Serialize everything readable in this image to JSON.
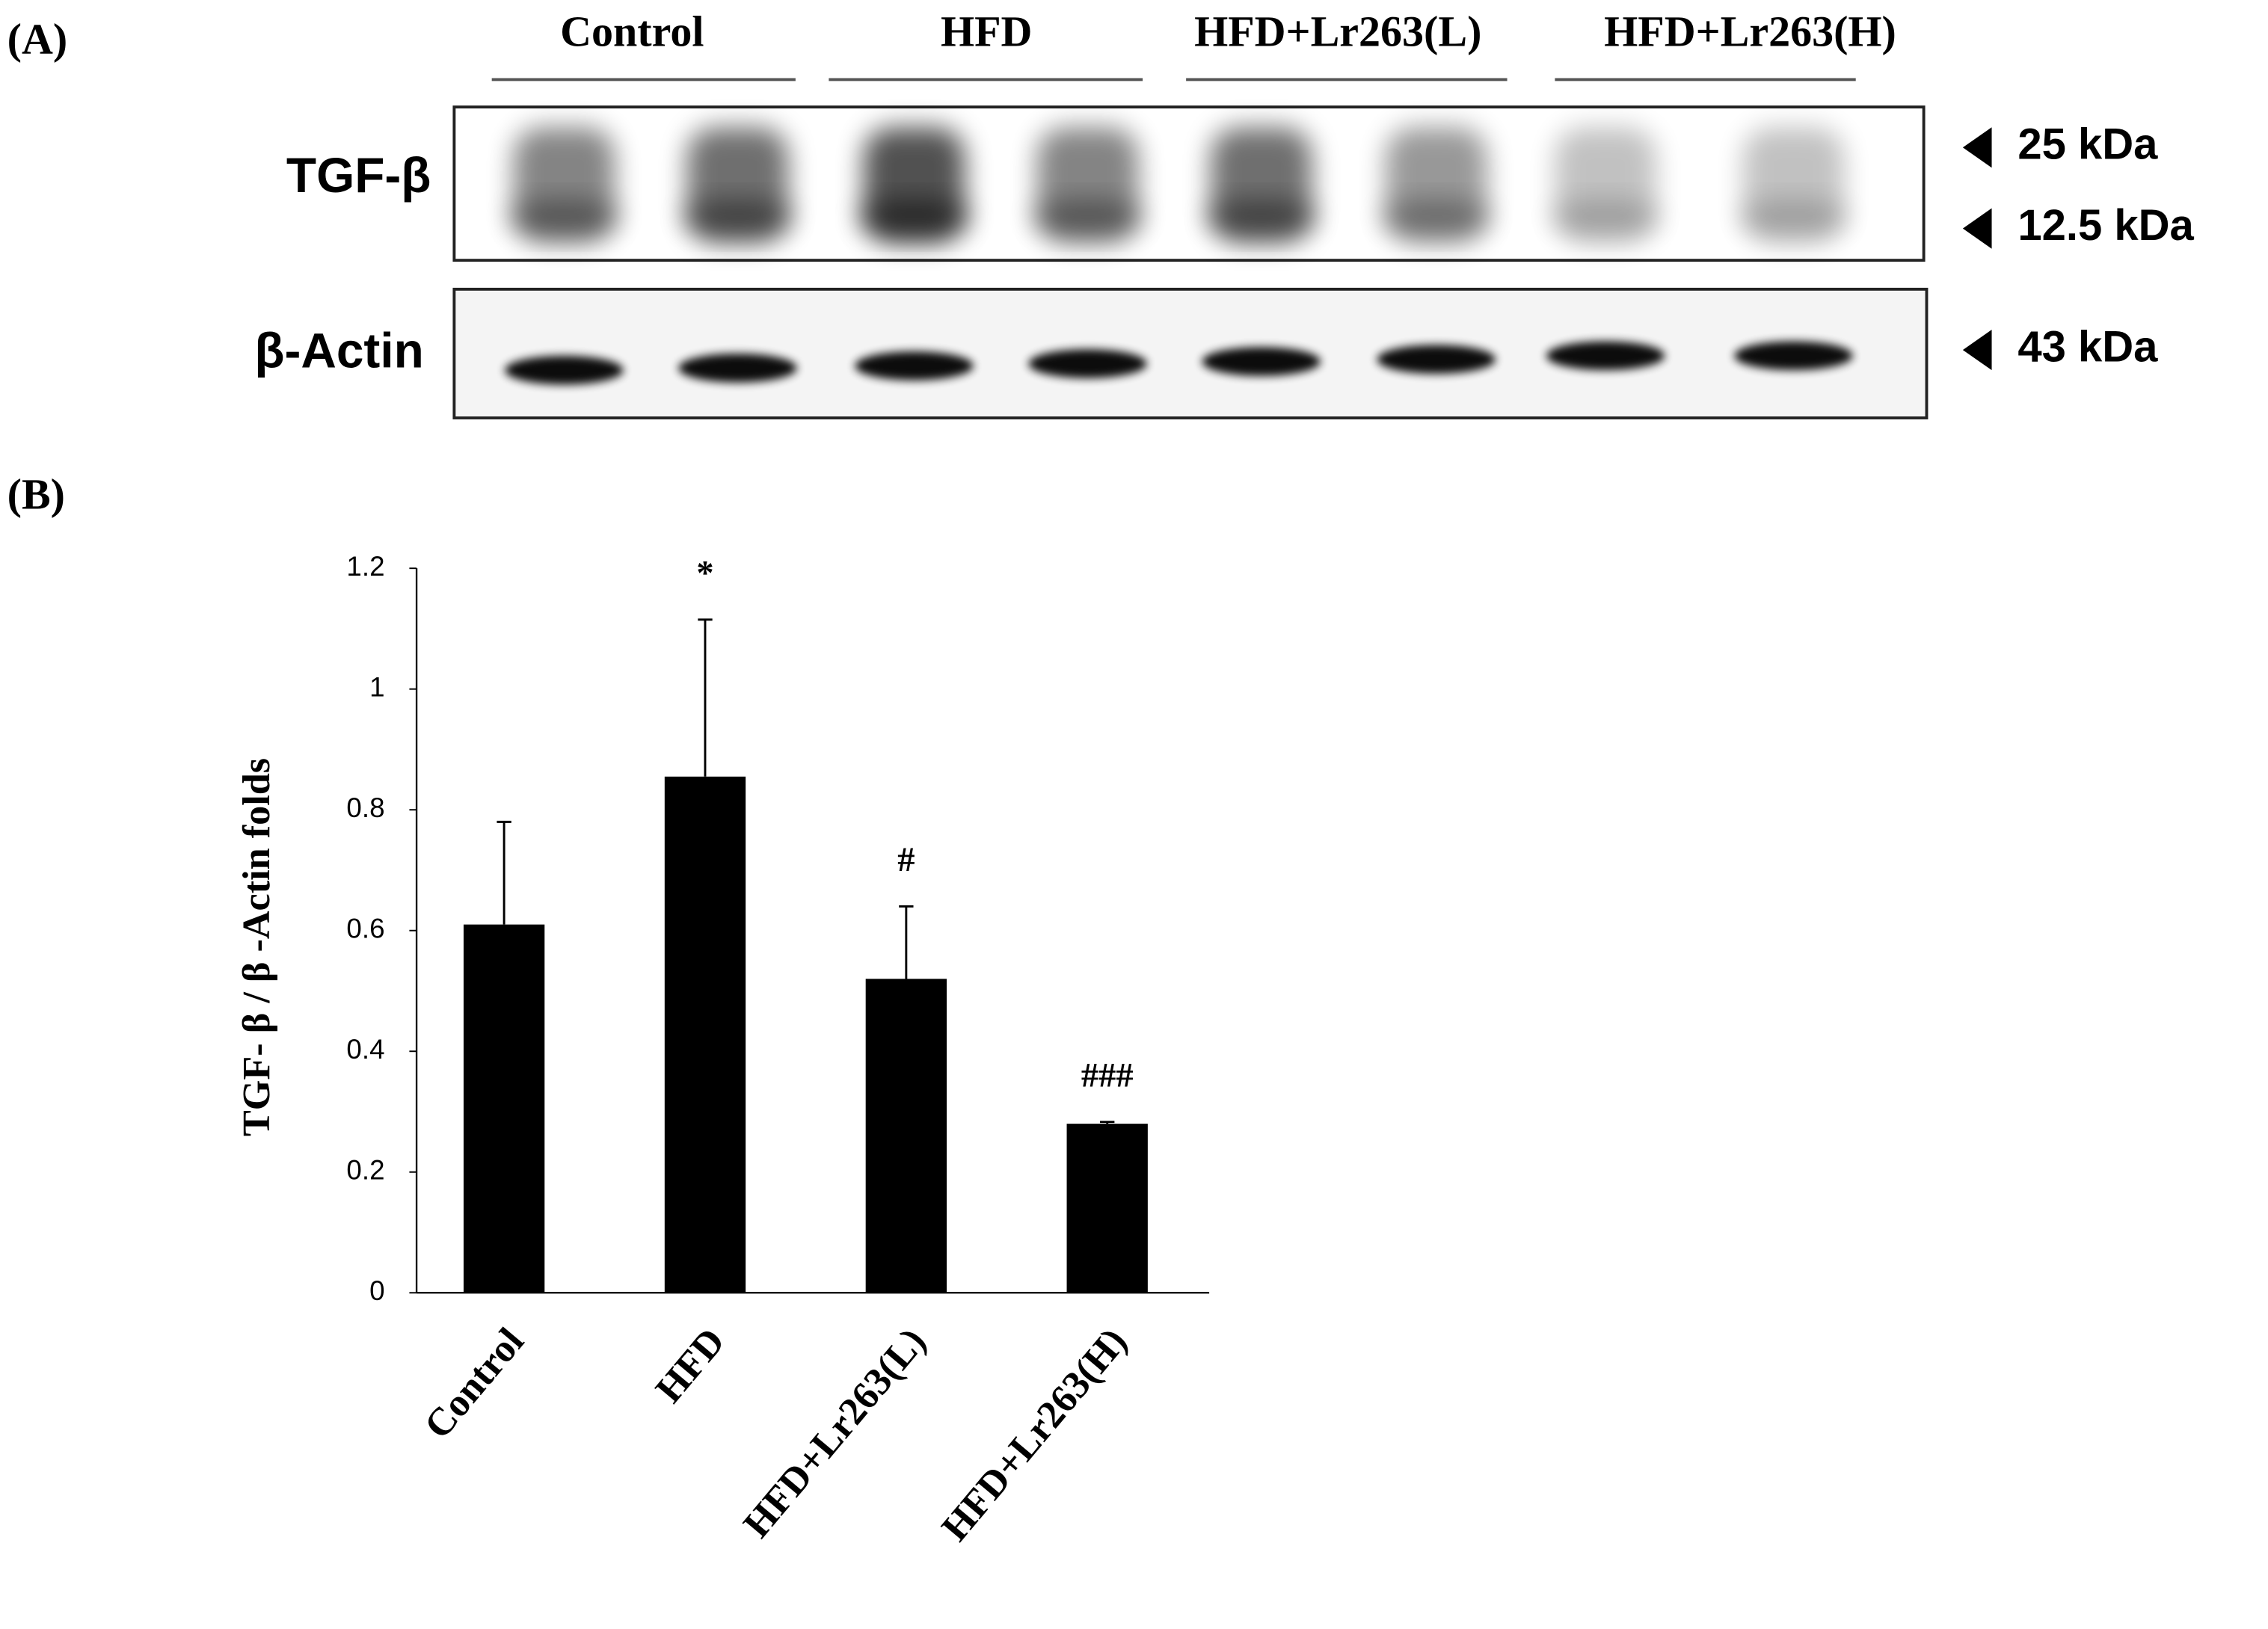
{
  "panel_labels": [
    "(A)",
    "(B)"
  ],
  "blot": {
    "groups": [
      "Control",
      "HFD",
      "HFD+Lr263(L)",
      "HFD+Lr263(H)"
    ],
    "rows": [
      {
        "label": "TGF-β",
        "markers": [
          "25 kDa",
          "12.5 kDa"
        ]
      },
      {
        "label": "β-Actin",
        "markers": [
          "43 kDa"
        ]
      }
    ]
  },
  "chart_data": {
    "type": "bar",
    "y_label": "TGF- β / β -Actin folds",
    "categories": [
      "Control",
      "HFD",
      "HFD+Lr263(L)",
      "HFD+Lr263(H)"
    ],
    "values": [
      0.61,
      0.855,
      0.52,
      0.28
    ],
    "errors": [
      0.17,
      0.26,
      0.12,
      0.003
    ],
    "annotations": [
      null,
      "*",
      "#",
      "###"
    ],
    "color": "#000000",
    "ylim": [
      0,
      1.2
    ],
    "yticks": [
      0,
      0.2,
      0.4,
      0.6,
      0.8,
      1,
      1.2
    ],
    "grid": false
  }
}
